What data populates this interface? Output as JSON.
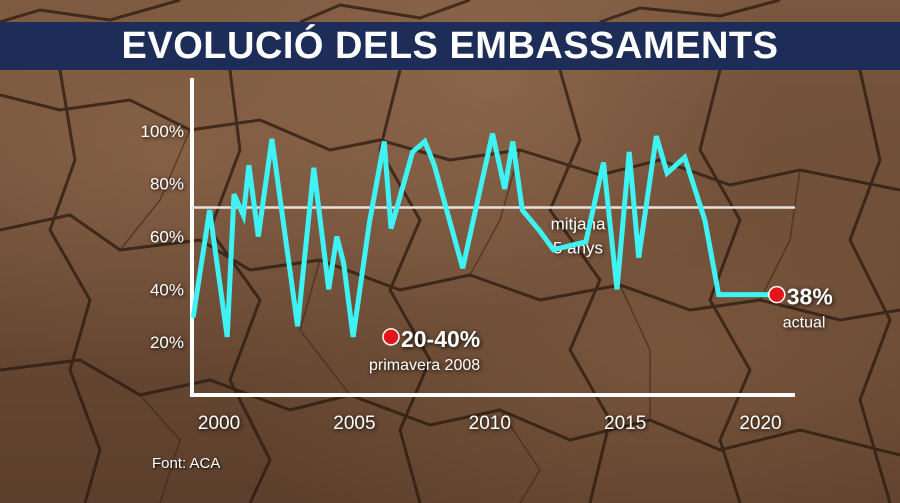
{
  "title": "EVOLUCIÓ DELS EMBASSAMENTS",
  "source": "Font: ACA",
  "colors": {
    "title_bar": "#1e2d57",
    "line": "#3ff3f5",
    "mean_line": "#e8e2dc",
    "marker": "#e0161b",
    "text": "#ffffff"
  },
  "chart_data": {
    "type": "line",
    "title": "EVOLUCIÓ DELS EMBASSAMENTS",
    "xlabel": "",
    "ylabel": "",
    "xlim": [
      1999.0,
      2021.2
    ],
    "ylim": [
      0,
      120
    ],
    "x_ticks": [
      2000,
      2005,
      2010,
      2015,
      2020
    ],
    "y_ticks": [
      20,
      40,
      60,
      80,
      100
    ],
    "y_tick_labels": [
      "20%",
      "40%",
      "60%",
      "80%",
      "100%"
    ],
    "grid": false,
    "series": [
      {
        "x": [
          1999.05,
          1999.65,
          2000.3,
          2000.55,
          2000.9,
          2001.1,
          2001.45,
          2001.95,
          2002.9,
          2003.5,
          2004.05,
          2004.35,
          2004.6,
          2004.95,
          2005.55,
          2006.1,
          2006.35,
          2007.15,
          2007.6,
          2007.95,
          2009.0,
          2010.1,
          2010.55,
          2010.85,
          2011.2,
          2011.85,
          2012.35,
          2013.55,
          2014.2,
          2014.7,
          2015.15,
          2015.5,
          2016.15,
          2016.55,
          2017.2,
          2017.95,
          2018.45,
          2018.95,
          2019.4,
          2020.15,
          2020.6
        ],
        "values": [
          30,
          70,
          22,
          76,
          68,
          87,
          60,
          97,
          26,
          86,
          40,
          60,
          50,
          22,
          65,
          96,
          63,
          92,
          96,
          87,
          48,
          99,
          78,
          96,
          70,
          62,
          55,
          58,
          88,
          40,
          92,
          52,
          98,
          84,
          90,
          66,
          38,
          38,
          38,
          38,
          38
        ]
      }
    ],
    "mean_line": {
      "value": 71,
      "label_line1": "mitjana",
      "label_line2": "5 anys"
    },
    "annotations": [
      {
        "x": 2006.35,
        "y": 22,
        "value": "20-40%",
        "label": "primavera 2008"
      },
      {
        "x": 2020.6,
        "y": 38,
        "value": "38%",
        "label": "actual"
      }
    ]
  }
}
